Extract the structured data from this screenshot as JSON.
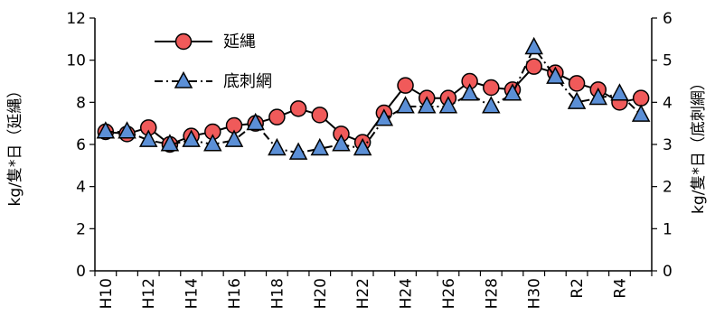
{
  "chart_data": {
    "type": "line",
    "categories": [
      "H10",
      "H11",
      "H12",
      "H13",
      "H14",
      "H15",
      "H16",
      "H17",
      "H18",
      "H19",
      "H20",
      "H21",
      "H22",
      "H23",
      "H24",
      "H25",
      "H26",
      "H27",
      "H28",
      "H29",
      "H30",
      "R1",
      "R2",
      "R3",
      "R4",
      "R5"
    ],
    "tick_labels": [
      "H10",
      "H12",
      "H14",
      "H16",
      "H18",
      "H20",
      "H22",
      "H24",
      "H26",
      "H28",
      "H30",
      "R2",
      "R4"
    ],
    "series": [
      {
        "name": "延縄",
        "axis": "left",
        "marker": "circle",
        "line": "solid",
        "color": "#f05a5a",
        "values": [
          6.6,
          6.5,
          6.8,
          6.0,
          6.4,
          6.6,
          6.9,
          7.0,
          7.3,
          7.7,
          7.4,
          6.5,
          6.1,
          7.5,
          8.8,
          8.2,
          8.2,
          9.0,
          8.7,
          8.6,
          9.7,
          9.4,
          8.9,
          8.6,
          8.0,
          8.2
        ]
      },
      {
        "name": "底刺網",
        "axis": "right",
        "marker": "triangle",
        "line": "dashdot",
        "color": "#5b8fd6",
        "values": [
          3.3,
          3.3,
          3.1,
          3.0,
          3.1,
          3.0,
          3.1,
          3.5,
          2.9,
          2.8,
          2.9,
          3.0,
          2.9,
          3.6,
          3.9,
          3.9,
          3.9,
          4.2,
          3.9,
          4.2,
          5.3,
          4.6,
          4.0,
          4.1,
          4.2,
          3.7
        ]
      }
    ],
    "y_left": {
      "label": "kg/隻*日（延縄）",
      "min": 0,
      "max": 12,
      "ticks": [
        0,
        2,
        4,
        6,
        8,
        10,
        12
      ]
    },
    "y_right": {
      "label": "kg/隻*日（底刺網）",
      "min": 0,
      "max": 6,
      "ticks": [
        0,
        1,
        2,
        3,
        4,
        5,
        6
      ]
    },
    "legend_position": "top-left",
    "grid": false
  }
}
